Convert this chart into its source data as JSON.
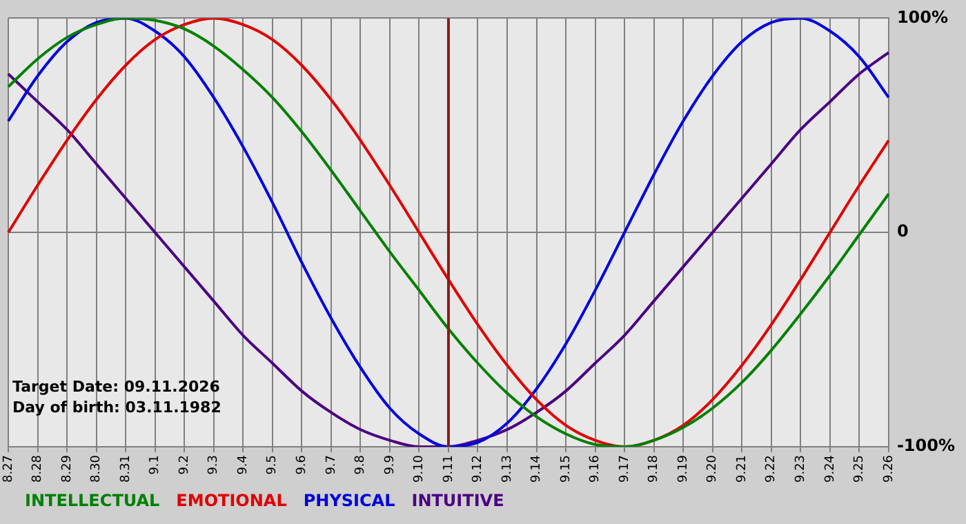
{
  "chart_data": {
    "type": "line",
    "categories": [
      "8.27",
      "8.28",
      "8.29",
      "8.30",
      "8.31",
      "9.1",
      "9.2",
      "9.3",
      "9.4",
      "9.5",
      "9.6",
      "9.7",
      "9.8",
      "9.9",
      "9.10",
      "9.11",
      "9.12",
      "9.13",
      "9.14",
      "9.15",
      "9.16",
      "9.17",
      "9.18",
      "9.19",
      "9.20",
      "9.21",
      "9.22",
      "9.23",
      "9.24",
      "9.25",
      "9.26"
    ],
    "series": [
      {
        "name": "INTELLECTUAL",
        "color": "#008000",
        "values": [
          68,
          81,
          91,
          97,
          100,
          99,
          95,
          87,
          76,
          63,
          47,
          29,
          10,
          -9,
          -27,
          -45,
          -61,
          -75,
          -86,
          -94,
          -99,
          -100,
          -97,
          -91,
          -82,
          -70,
          -55,
          -38,
          -20,
          -1,
          18
        ]
      },
      {
        "name": "EMOTIONAL",
        "color": "#e00000",
        "values": [
          0,
          22,
          43,
          62,
          78,
          90,
          97,
          100,
          97,
          90,
          78,
          62,
          43,
          22,
          0,
          -22,
          -43,
          -62,
          -78,
          -90,
          -97,
          -100,
          -97,
          -90,
          -78,
          -62,
          -43,
          -22,
          0,
          22,
          43
        ]
      },
      {
        "name": "PHYSICAL",
        "color": "#0000e0",
        "values": [
          52,
          73,
          89,
          98,
          100,
          94,
          82,
          63,
          40,
          14,
          -14,
          -40,
          -63,
          -82,
          -94,
          -100,
          -98,
          -89,
          -73,
          -52,
          -27,
          0,
          27,
          52,
          73,
          89,
          98,
          100,
          94,
          82,
          63
        ]
      },
      {
        "name": "INTUITIVE",
        "color": "#4b0082",
        "values": [
          74,
          61,
          48,
          32,
          16,
          0,
          -16,
          -32,
          -48,
          -61,
          -74,
          -84,
          -92,
          -97,
          -100,
          -100,
          -97,
          -92,
          -84,
          -74,
          -61,
          -48,
          -32,
          -16,
          0,
          16,
          32,
          48,
          61,
          74,
          84
        ]
      }
    ],
    "ylim": [
      -100,
      100
    ],
    "yticks": [
      {
        "value": -100,
        "label": "-100%"
      },
      0,
      {
        "value": 100,
        "label": "100%"
      }
    ],
    "grid": true,
    "legend": "bottom left",
    "marker": "none",
    "line_style": "solid",
    "ref_lines": [
      {
        "axis": "x",
        "value": "9.11",
        "color": "#8b1a1a"
      }
    ],
    "annotations": [
      "Target Date: 09.11.2026",
      "Day of birth: 03.11.1982"
    ]
  }
}
